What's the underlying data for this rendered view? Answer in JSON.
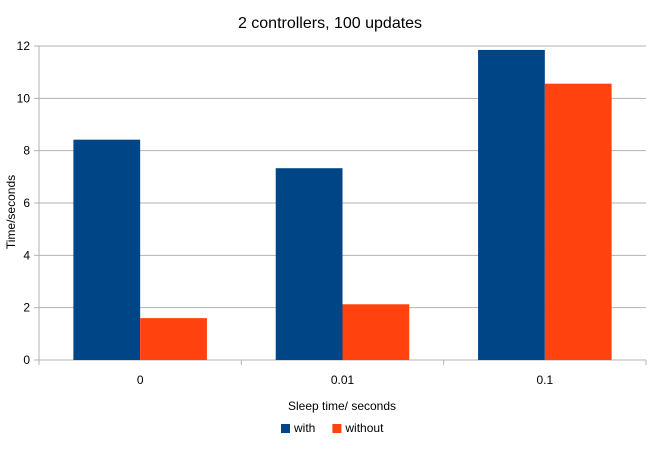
{
  "chart_data": {
    "type": "bar",
    "title": "2 controllers, 100 updates",
    "xlabel": "Sleep time/ seconds",
    "ylabel": "Time/seconds",
    "categories": [
      "0",
      "0.01",
      "0.1"
    ],
    "series": [
      {
        "name": "with",
        "color": "#004586",
        "values": [
          8.42,
          7.33,
          11.85
        ]
      },
      {
        "name": "without",
        "color": "#ff420e",
        "values": [
          1.6,
          2.13,
          10.56
        ]
      }
    ],
    "ylim": [
      0,
      12
    ],
    "yticks": [
      0,
      2,
      4,
      6,
      8,
      10,
      12
    ],
    "grid": true,
    "legend_position": "bottom"
  }
}
